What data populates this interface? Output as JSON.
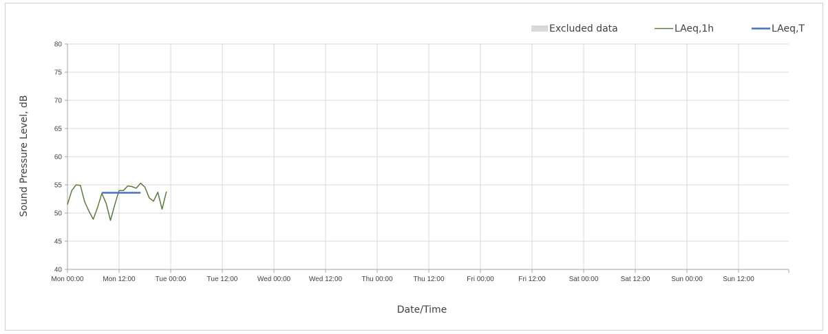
{
  "chart_data": {
    "type": "line",
    "xlabel": "Date/Time",
    "ylabel": "Sound Pressure Level, dB",
    "ylim": [
      40,
      80
    ],
    "yticks": [
      "40",
      "45",
      "50",
      "55",
      "60",
      "65",
      "70",
      "75",
      "80"
    ],
    "xlim": [
      "Mon 00:00",
      "Mon 00:00 (next week)"
    ],
    "xticks": [
      "Mon 00:00",
      "Mon 12:00",
      "Tue 00:00",
      "Tue 12:00",
      "Wed 00:00",
      "Wed 12:00",
      "Thu 00:00",
      "Thu 12:00",
      "Fri 00:00",
      "Fri 12:00",
      "Sat 00:00",
      "Sat 12:00",
      "Sun 00:00",
      "Sun 12:00"
    ],
    "grid": true,
    "legend_position": "top-right",
    "legend": [
      {
        "label": "Excluded data",
        "kind": "area",
        "color": "#d9d9d9"
      },
      {
        "label": "LAeq,1h",
        "kind": "line",
        "color": "#5a7a3a"
      },
      {
        "label": "LAeq,T",
        "kind": "line",
        "color": "#4472c4"
      }
    ],
    "series": [
      {
        "name": "LAeq,1h",
        "color": "#5a7a3a",
        "x": [
          "Mon 00:00",
          "Mon 01:00",
          "Mon 02:00",
          "Mon 03:00",
          "Mon 04:00",
          "Mon 05:00",
          "Mon 06:00",
          "Mon 07:00",
          "Mon 08:00",
          "Mon 09:00",
          "Mon 10:00",
          "Mon 11:00",
          "Mon 12:00",
          "Mon 13:00",
          "Mon 14:00",
          "Mon 15:00",
          "Mon 16:00",
          "Mon 17:00",
          "Mon 18:00",
          "Mon 19:00",
          "Mon 20:00",
          "Mon 21:00",
          "Mon 22:00",
          "Mon 23:00",
          "Tue 00:00"
        ],
        "values": [
          51.5,
          54.0,
          55.0,
          54.9,
          52.0,
          50.3,
          48.9,
          51.0,
          53.5,
          51.7,
          48.7,
          51.5,
          54.0,
          54.0,
          54.8,
          54.7,
          54.4,
          55.3,
          54.6,
          52.7,
          52.1,
          53.7,
          50.7,
          53.8,
          null
        ]
      },
      {
        "name": "LAeq,T",
        "color": "#4472c4",
        "x": [
          "Mon 08:00",
          "Mon 17:00"
        ],
        "values": [
          53.6,
          53.6
        ]
      }
    ]
  }
}
